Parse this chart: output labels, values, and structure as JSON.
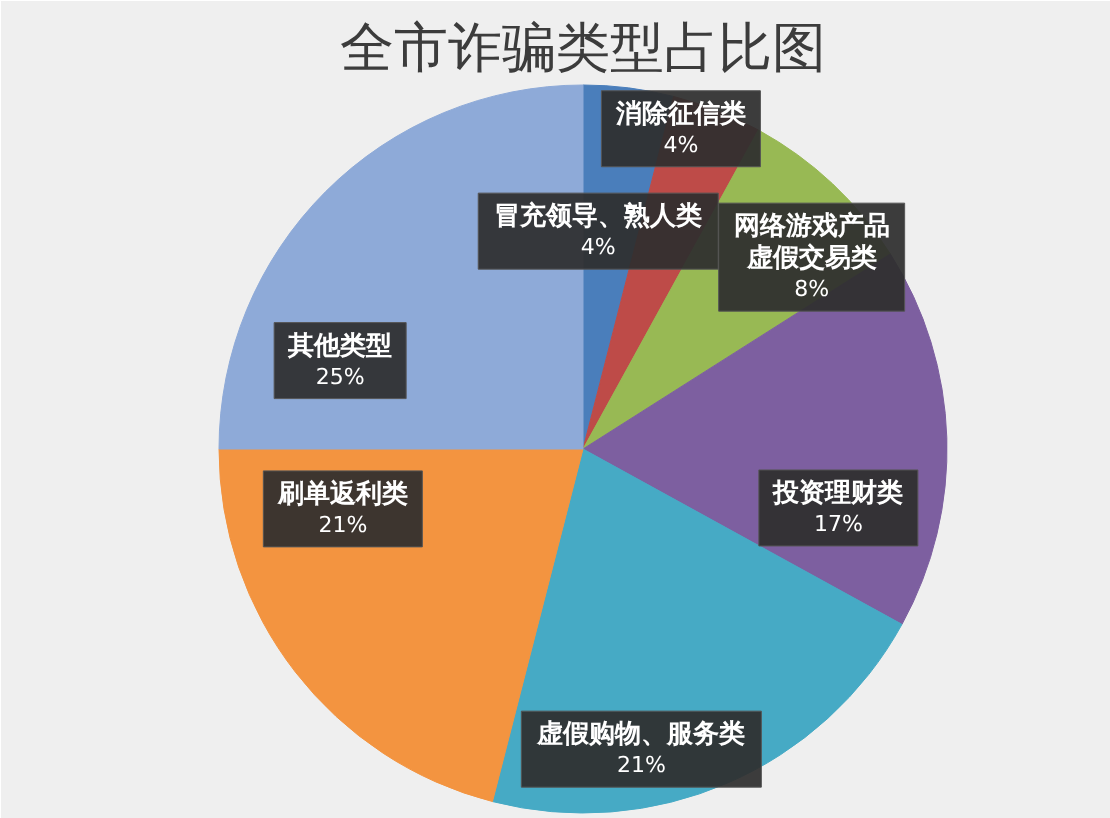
{
  "chart_data": {
    "type": "pie",
    "title": "全市诈骗类型占比图",
    "categories": [
      "冒充领导、熟人类",
      "消除征信类",
      "网络游戏产品虚假交易类",
      "投资理财类",
      "虚假购物、服务类",
      "刷单返利类",
      "其他类型"
    ],
    "values": [
      4,
      4,
      8,
      17,
      21,
      21,
      25
    ],
    "value_labels": [
      "4%",
      "4%",
      "8%",
      "17%",
      "21%",
      "21%",
      "25%"
    ],
    "colors": [
      "#4a7ebb",
      "#be4b48",
      "#98b954",
      "#7d5fa0",
      "#46aac5",
      "#f39440",
      "#8eaad8"
    ]
  }
}
